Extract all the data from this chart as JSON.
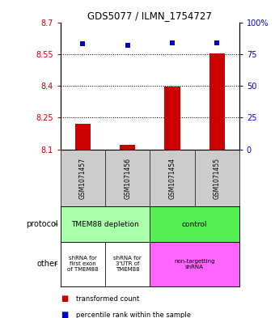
{
  "title": "GDS5077 / ILMN_1754727",
  "samples": [
    "GSM1071457",
    "GSM1071456",
    "GSM1071454",
    "GSM1071455"
  ],
  "bar_values": [
    8.22,
    8.12,
    8.395,
    8.555
  ],
  "bar_base": 8.1,
  "percentile_values": [
    83,
    82,
    84,
    84
  ],
  "ylim_left": [
    8.1,
    8.7
  ],
  "yticks_left": [
    8.1,
    8.25,
    8.4,
    8.55,
    8.7
  ],
  "yticks_right": [
    0,
    25,
    50,
    75,
    100
  ],
  "bar_color": "#cc0000",
  "dot_color": "#0000cc",
  "protocol_row": [
    {
      "label": "TMEM88 depletion",
      "span": [
        0,
        2
      ],
      "color": "#aaffaa"
    },
    {
      "label": "control",
      "span": [
        2,
        4
      ],
      "color": "#55ee55"
    }
  ],
  "other_row": [
    {
      "label": "shRNA for\nfirst exon\nof TMEM88",
      "span": [
        0,
        1
      ],
      "color": "#ffffff"
    },
    {
      "label": "shRNA for\n3'UTR of\nTMEM88",
      "span": [
        1,
        2
      ],
      "color": "#ffffff"
    },
    {
      "label": "non-targetting\nshRNA",
      "span": [
        2,
        4
      ],
      "color": "#ff66ff"
    }
  ],
  "sample_row_color": "#cccccc",
  "legend_red_label": "transformed count",
  "legend_blue_label": "percentile rank within the sample",
  "protocol_label": "protocol",
  "other_label": "other"
}
